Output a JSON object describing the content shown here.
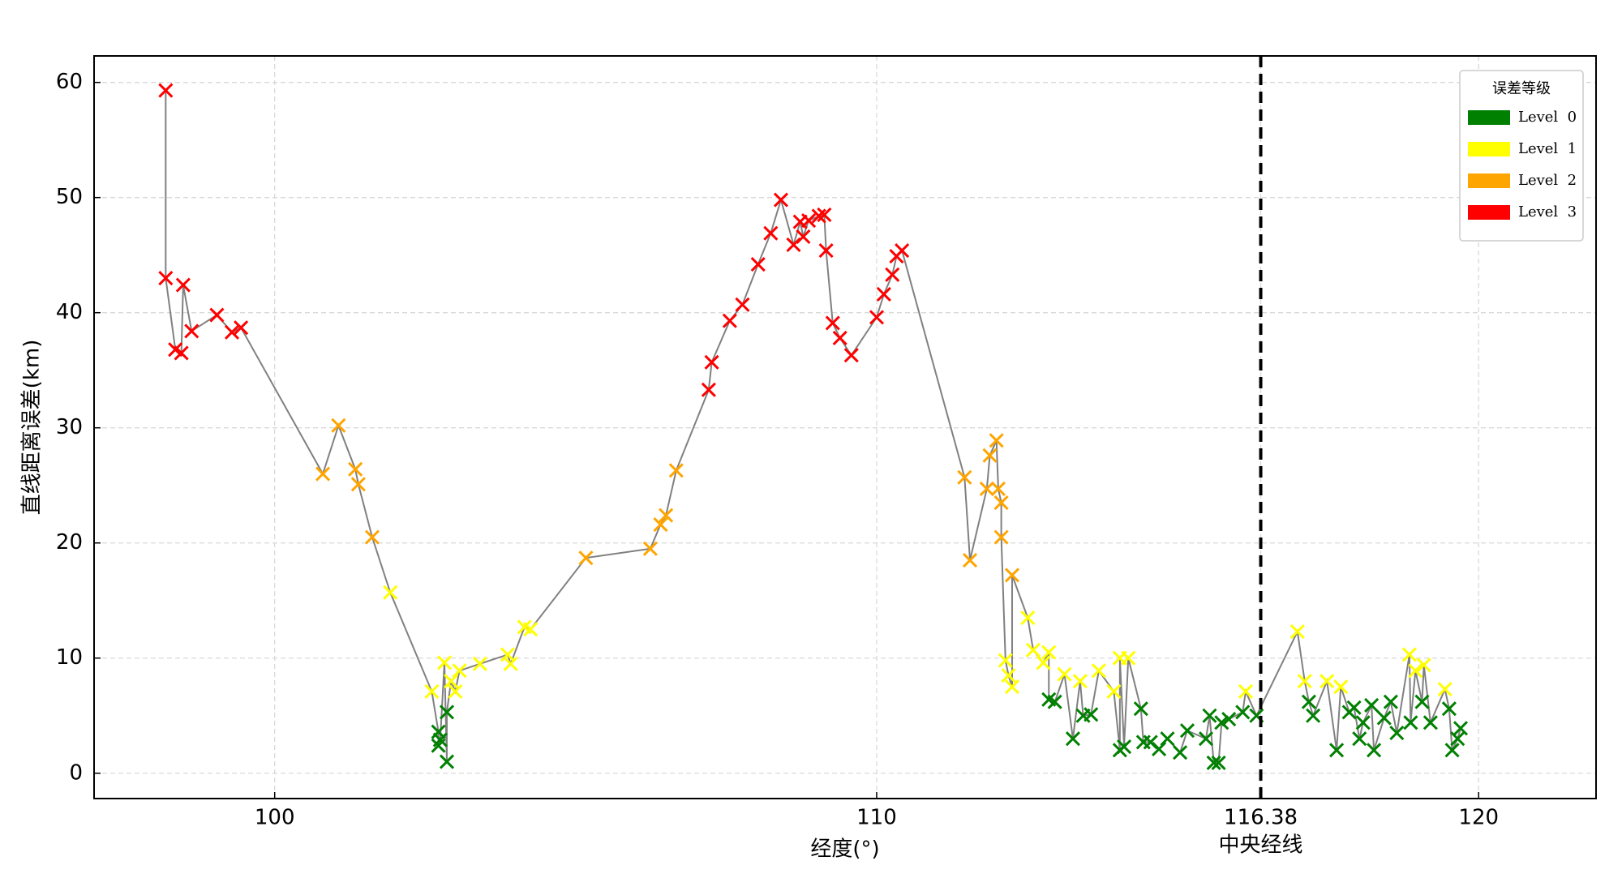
{
  "chart_data": {
    "type": "line",
    "xlabel": "经度(°)",
    "ylabel": "直线距离误差(km)",
    "xlim": [
      97.0,
      121.95
    ],
    "ylim": [
      -2.2,
      62.3
    ],
    "xticks": [
      100,
      110,
      116.38,
      120
    ],
    "yticks": [
      0,
      10,
      20,
      30,
      40,
      50,
      60
    ],
    "grid": true,
    "line_color": "#808080",
    "vline": {
      "x": 116.38,
      "label": "中央经线",
      "color": "#000000"
    },
    "legend": {
      "title": "误差等级",
      "position": "upper right",
      "items": [
        {
          "name": "Level  0",
          "color": "#008000"
        },
        {
          "name": "Level  1",
          "color": "#ffff00"
        },
        {
          "name": "Level  2",
          "color": "#ffa500"
        },
        {
          "name": "Level  3",
          "color": "#ff0000"
        }
      ]
    },
    "x": [
      98.19,
      98.19,
      98.35,
      98.45,
      98.48,
      98.62,
      99.04,
      99.29,
      99.44,
      100.8,
      101.06,
      101.34,
      101.39,
      101.62,
      101.92,
      102.61,
      102.72,
      102.72,
      102.75,
      102.82,
      102.86,
      102.86,
      102.93,
      103.0,
      103.07,
      103.41,
      103.87,
      103.92,
      104.15,
      104.25,
      105.17,
      106.24,
      106.41,
      106.5,
      106.67,
      107.21,
      107.26,
      107.56,
      107.77,
      108.03,
      108.24,
      108.41,
      108.62,
      108.73,
      108.78,
      108.87,
      109.04,
      109.13,
      109.16,
      109.27,
      109.39,
      109.58,
      110.0,
      110.12,
      110.26,
      110.33,
      110.42,
      111.46,
      111.55,
      111.83,
      111.88,
      111.99,
      112.02,
      112.07,
      112.07,
      112.14,
      112.19,
      112.25,
      112.25,
      112.51,
      112.6,
      112.77,
      112.86,
      112.86,
      112.96,
      113.12,
      113.26,
      113.38,
      113.43,
      113.56,
      113.69,
      113.94,
      114.04,
      114.04,
      114.11,
      114.18,
      114.39,
      114.43,
      114.55,
      114.69,
      114.83,
      115.04,
      115.16,
      115.47,
      115.53,
      115.6,
      115.68,
      115.73,
      115.85,
      116.08,
      116.13,
      116.31,
      116.99,
      117.11,
      117.18,
      117.25,
      117.48,
      117.64,
      117.71,
      117.85,
      117.93,
      118.02,
      118.08,
      118.22,
      118.26,
      118.43,
      118.54,
      118.64,
      118.85,
      118.87,
      118.95,
      119.06,
      119.09,
      119.2,
      119.44,
      119.51,
      119.56,
      119.65,
      119.7
    ],
    "values": [
      59.3,
      43.0,
      36.8,
      36.5,
      42.4,
      38.4,
      39.8,
      38.3,
      38.7,
      26.0,
      30.2,
      26.4,
      25.1,
      20.5,
      15.7,
      7.1,
      3.6,
      2.4,
      2.9,
      9.6,
      1.0,
      5.3,
      8.0,
      7.1,
      8.9,
      9.5,
      10.3,
      9.5,
      12.7,
      12.5,
      18.7,
      19.5,
      21.6,
      22.4,
      26.3,
      33.3,
      35.7,
      39.3,
      40.7,
      44.2,
      46.9,
      49.8,
      45.9,
      47.9,
      46.6,
      48.0,
      48.4,
      48.5,
      45.4,
      39.1,
      37.8,
      36.3,
      39.6,
      41.6,
      43.3,
      44.9,
      45.4,
      25.7,
      18.5,
      24.7,
      27.6,
      28.9,
      24.7,
      23.5,
      20.5,
      9.8,
      8.5,
      7.5,
      17.2,
      13.5,
      10.7,
      9.6,
      10.5,
      6.4,
      6.2,
      8.6,
      3.0,
      8.0,
      5.0,
      5.1,
      8.9,
      7.1,
      2.0,
      10.0,
      2.3,
      10.0,
      5.6,
      2.7,
      2.7,
      2.1,
      3.0,
      1.8,
      3.7,
      3.0,
      5.0,
      0.9,
      0.9,
      4.4,
      4.7,
      5.3,
      7.1,
      5.0,
      12.3,
      8.0,
      6.2,
      5.0,
      8.0,
      2.0,
      7.5,
      5.3,
      5.7,
      3.0,
      4.4,
      5.9,
      2.0,
      4.8,
      6.2,
      3.5,
      10.3,
      4.4,
      8.9,
      6.2,
      9.4,
      4.4,
      7.3,
      5.6,
      2.0,
      3.0,
      3.9
    ],
    "levels": [
      3,
      3,
      3,
      3,
      3,
      3,
      3,
      3,
      3,
      2,
      2,
      2,
      2,
      2,
      1,
      1,
      0,
      0,
      0,
      1,
      0,
      0,
      1,
      1,
      1,
      1,
      1,
      1,
      1,
      1,
      2,
      2,
      2,
      2,
      2,
      3,
      3,
      3,
      3,
      3,
      3,
      3,
      3,
      3,
      3,
      3,
      3,
      3,
      3,
      3,
      3,
      3,
      3,
      3,
      3,
      3,
      3,
      2,
      2,
      2,
      2,
      2,
      2,
      2,
      2,
      1,
      1,
      1,
      2,
      1,
      1,
      1,
      1,
      0,
      0,
      1,
      0,
      1,
      0,
      0,
      1,
      1,
      0,
      1,
      0,
      1,
      0,
      0,
      0,
      0,
      0,
      0,
      0,
      0,
      0,
      0,
      0,
      0,
      0,
      0,
      1,
      0,
      1,
      1,
      0,
      0,
      1,
      0,
      1,
      0,
      0,
      0,
      0,
      0,
      0,
      0,
      0,
      0,
      1,
      0,
      1,
      0,
      1,
      0,
      1,
      0,
      0,
      0,
      0
    ]
  }
}
